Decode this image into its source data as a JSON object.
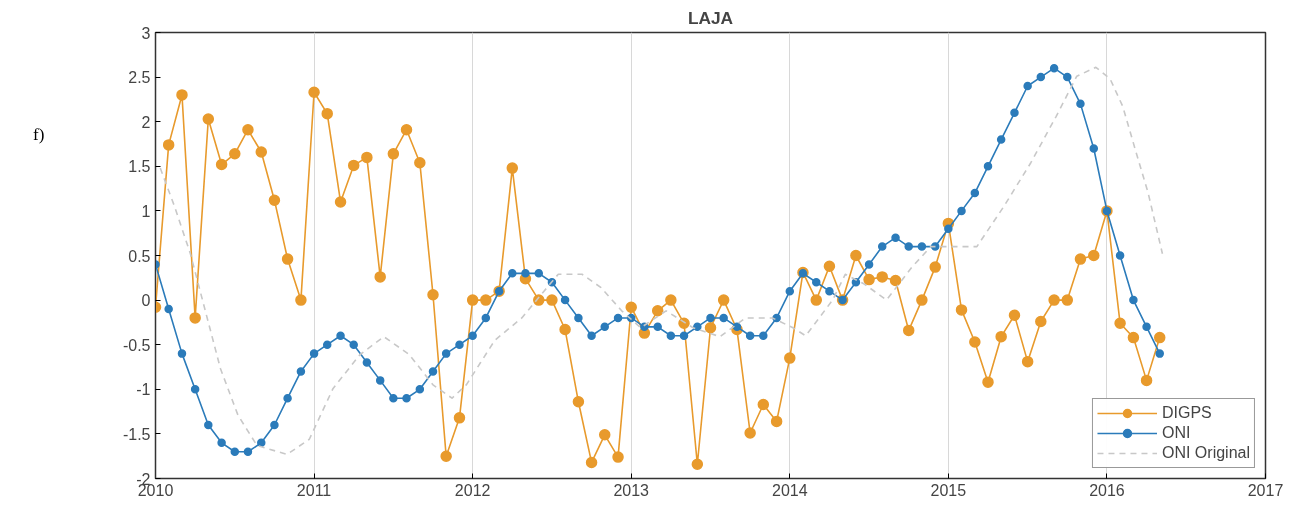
{
  "chart_data": {
    "type": "line",
    "title": "LAJA",
    "annotations": [
      "f)"
    ],
    "x": [
      2010,
      2010.083,
      2010.167,
      2010.25,
      2010.333,
      2010.417,
      2010.5,
      2010.583,
      2010.667,
      2010.75,
      2010.833,
      2010.917,
      2011,
      2011.083,
      2011.167,
      2011.25,
      2011.333,
      2011.417,
      2011.5,
      2011.583,
      2011.667,
      2011.75,
      2011.833,
      2011.917,
      2012,
      2012.083,
      2012.167,
      2012.25,
      2012.333,
      2012.417,
      2012.5,
      2012.583,
      2012.667,
      2012.75,
      2012.833,
      2012.917,
      2013,
      2013.083,
      2013.167,
      2013.25,
      2013.333,
      2013.417,
      2013.5,
      2013.583,
      2013.667,
      2013.75,
      2013.833,
      2013.917,
      2014,
      2014.083,
      2014.167,
      2014.25,
      2014.333,
      2014.417,
      2014.5,
      2014.583,
      2014.667,
      2014.75,
      2014.833,
      2014.917,
      2015,
      2015.083,
      2015.167,
      2015.25,
      2015.333,
      2015.417,
      2015.5,
      2015.583,
      2015.667,
      2015.75,
      2015.833,
      2015.917,
      2016,
      2016.083,
      2016.167,
      2016.25,
      2016.333
    ],
    "series": [
      {
        "name": "DIGPS",
        "color": "#e89a2c",
        "marker": "circle",
        "line_style": "solid",
        "values": [
          -0.08,
          1.74,
          2.3,
          -0.2,
          2.03,
          1.52,
          1.64,
          1.91,
          1.66,
          1.12,
          0.46,
          0.0,
          2.33,
          2.09,
          1.1,
          1.51,
          1.6,
          0.26,
          1.64,
          1.91,
          1.54,
          0.06,
          -1.75,
          -1.32,
          0.0,
          0.0,
          0.1,
          1.48,
          0.24,
          0.0,
          0.0,
          -0.33,
          -1.14,
          -1.82,
          -1.51,
          -1.76,
          -0.08,
          -0.37,
          -0.12,
          0.0,
          -0.26,
          -1.84,
          -0.31,
          0.0,
          -0.33,
          -1.49,
          -1.17,
          -1.36,
          -0.65,
          0.31,
          0.0,
          0.38,
          0.0,
          0.5,
          0.23,
          0.26,
          0.22,
          -0.34,
          0.0,
          0.37,
          0.86,
          -0.11,
          -0.47,
          -0.92,
          -0.41,
          -0.17,
          -0.69,
          -0.24,
          0.0,
          0.0,
          0.46,
          0.5,
          1.0,
          -0.26,
          -0.42,
          -0.9,
          -0.42
        ]
      },
      {
        "name": "ONI",
        "color": "#2b7bba",
        "marker": "circle",
        "line_style": "solid",
        "values": [
          0.4,
          -0.1,
          -0.6,
          -1.0,
          -1.4,
          -1.6,
          -1.7,
          -1.7,
          -1.6,
          -1.4,
          -1.1,
          -0.8,
          -0.6,
          -0.5,
          -0.4,
          -0.5,
          -0.7,
          -0.9,
          -1.1,
          -1.1,
          -1.0,
          -0.8,
          -0.6,
          -0.5,
          -0.4,
          -0.2,
          0.1,
          0.3,
          0.3,
          0.3,
          0.2,
          0.0,
          -0.2,
          -0.4,
          -0.3,
          -0.2,
          -0.2,
          -0.3,
          -0.3,
          -0.4,
          -0.4,
          -0.3,
          -0.2,
          -0.2,
          -0.3,
          -0.4,
          -0.4,
          -0.2,
          0.1,
          0.3,
          0.2,
          0.1,
          0.0,
          0.2,
          0.4,
          0.6,
          0.7,
          0.6,
          0.6,
          0.6,
          0.8,
          1.0,
          1.2,
          1.5,
          1.8,
          2.1,
          2.4,
          2.5,
          2.6,
          2.5,
          2.2,
          1.7,
          1.0,
          0.5,
          0.0,
          -0.3,
          -0.6
        ]
      },
      {
        "name": "ONI Original",
        "color": "#c8c8c8",
        "marker": "none",
        "line_style": "dashed",
        "x": [
          2010.03,
          2010.12,
          2010.22,
          2010.32,
          2010.41,
          2010.52,
          2010.64,
          2010.83,
          2010.97,
          2011.12,
          2011.29,
          2011.44,
          2011.6,
          2011.75,
          2011.87,
          2011.96,
          2012.05,
          2012.14,
          2012.31,
          2012.45,
          2012.54,
          2012.69,
          2012.81,
          2012.94,
          2013.06,
          2013.22,
          2013.39,
          2013.56,
          2013.72,
          2013.89,
          2014.02,
          2014.1,
          2014.27,
          2014.35,
          2014.47,
          2014.61,
          2014.77,
          2014.89,
          2015.18,
          2015.35,
          2015.52,
          2015.68,
          2015.81,
          2015.93,
          2016.02,
          2016.1,
          2016.18,
          2016.26,
          2016.35
        ],
        "values": [
          1.48,
          1.05,
          0.52,
          -0.16,
          -0.77,
          -1.29,
          -1.63,
          -1.73,
          -1.56,
          -0.99,
          -0.61,
          -0.41,
          -0.61,
          -0.95,
          -1.1,
          -0.95,
          -0.7,
          -0.45,
          -0.2,
          0.1,
          0.29,
          0.29,
          0.14,
          -0.12,
          -0.31,
          -0.12,
          -0.31,
          -0.41,
          -0.2,
          -0.2,
          -0.31,
          -0.4,
          0.0,
          0.29,
          0.18,
          0.0,
          0.37,
          0.6,
          0.6,
          1.05,
          1.54,
          2.06,
          2.51,
          2.61,
          2.48,
          2.17,
          1.68,
          1.2,
          0.52
        ]
      }
    ],
    "xlim": [
      2010,
      2017
    ],
    "xticks": [
      2010,
      2011,
      2012,
      2013,
      2014,
      2015,
      2016,
      2017
    ],
    "ylim": [
      -2,
      3
    ],
    "yticks": [
      -2,
      -1.5,
      -1,
      -0.5,
      0,
      0.5,
      1,
      1.5,
      2,
      2.5,
      3
    ],
    "grid": "x",
    "legend": "bottom right"
  }
}
